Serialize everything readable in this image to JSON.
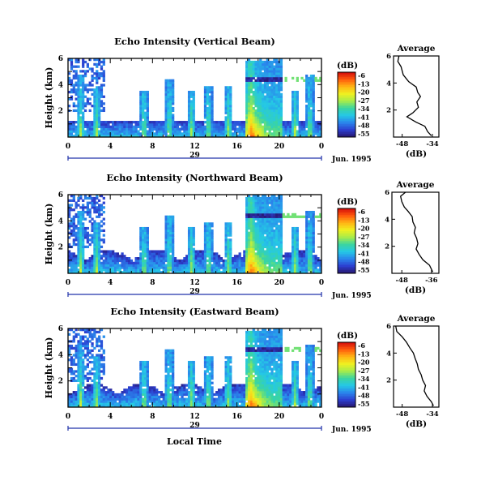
{
  "figure": {
    "ylabel": "Height (km)",
    "xlabel": "Local Time",
    "date_label": "Jun. 1995",
    "day_label": "29",
    "colorbar_unit": "(dB)",
    "colorbar_ticks": [
      "-6",
      "-13",
      "-20",
      "-27",
      "-34",
      "-41",
      "-48",
      "-55"
    ],
    "colormap": [
      "#28166e",
      "#2c3fd0",
      "#2a86ec",
      "#25c8e6",
      "#3bd5a0",
      "#a8ec4a",
      "#f0f020",
      "#ffb414",
      "#ff5a0c",
      "#d20a0a"
    ]
  },
  "chart_data": [
    {
      "type": "heatmap",
      "title": "Echo Intensity (Vertical Beam)",
      "x_ticks": [
        "0",
        "4",
        "8",
        "12",
        "16",
        "20",
        "0"
      ],
      "y_ticks": [
        "6",
        "4",
        "2"
      ],
      "xlim": [
        0,
        24
      ],
      "ylim": [
        0,
        6
      ],
      "convection_window_hours": [
        16.8,
        20.3
      ],
      "bright_band_height_km": 4.4
    },
    {
      "type": "line",
      "title": "Average",
      "xlabel": "(dB)",
      "x_ticks": [
        "-48",
        "-34"
      ],
      "y_ticks": [
        "6",
        "4",
        "2"
      ],
      "xlim": [
        -52,
        -31
      ],
      "ylim": [
        0,
        6
      ],
      "points": [
        [
          -49.5,
          6.0
        ],
        [
          -50.0,
          5.6
        ],
        [
          -48.5,
          5.2
        ],
        [
          -47.5,
          4.6
        ],
        [
          -45.0,
          4.1
        ],
        [
          -41.5,
          3.7
        ],
        [
          -40.8,
          3.3
        ],
        [
          -39.5,
          3.0
        ],
        [
          -41.2,
          2.6
        ],
        [
          -40.5,
          2.2
        ],
        [
          -43.0,
          1.8
        ],
        [
          -45.8,
          1.5
        ],
        [
          -41.5,
          1.1
        ],
        [
          -37.5,
          0.8
        ],
        [
          -36.2,
          0.4
        ],
        [
          -34.5,
          0.1
        ]
      ]
    },
    {
      "type": "heatmap",
      "title": "Echo Intensity (Northward Beam)",
      "x_ticks": [
        "0",
        "4",
        "8",
        "12",
        "16",
        "20",
        "0"
      ],
      "y_ticks": [
        "6",
        "4",
        "2"
      ],
      "xlim": [
        0,
        24
      ],
      "ylim": [
        0,
        6
      ],
      "convection_window_hours": [
        16.8,
        20.3
      ],
      "bright_band_height_km": 4.4
    },
    {
      "type": "line",
      "title": "Average",
      "xlabel": "(dB)",
      "x_ticks": [
        "-48",
        "-36"
      ],
      "y_ticks": [
        "6",
        "4",
        "2"
      ],
      "xlim": [
        -52,
        -33
      ],
      "ylim": [
        0,
        6
      ],
      "points": [
        [
          -46.5,
          6.0
        ],
        [
          -48.5,
          5.7
        ],
        [
          -48.0,
          5.3
        ],
        [
          -47.0,
          4.9
        ],
        [
          -45.5,
          4.6
        ],
        [
          -43.8,
          4.2
        ],
        [
          -43.5,
          3.8
        ],
        [
          -42.5,
          3.4
        ],
        [
          -43.0,
          3.0
        ],
        [
          -42.0,
          2.6
        ],
        [
          -41.5,
          2.2
        ],
        [
          -42.2,
          1.8
        ],
        [
          -41.0,
          1.4
        ],
        [
          -39.5,
          1.0
        ],
        [
          -36.8,
          0.6
        ],
        [
          -35.5,
          0.1
        ]
      ]
    },
    {
      "type": "heatmap",
      "title": "Echo Intensity (Eastward Beam)",
      "x_ticks": [
        "0",
        "4",
        "8",
        "12",
        "16",
        "20",
        "0"
      ],
      "y_ticks": [
        "6",
        "4",
        "2"
      ],
      "xlim": [
        0,
        24
      ],
      "ylim": [
        0,
        6
      ],
      "convection_window_hours": [
        16.8,
        20.3
      ],
      "bright_band_height_km": 4.4
    },
    {
      "type": "line",
      "title": "Average",
      "xlabel": "(dB)",
      "x_ticks": [
        "-48",
        "-34"
      ],
      "y_ticks": [
        "6",
        "4",
        "2"
      ],
      "xlim": [
        -52,
        -31
      ],
      "ylim": [
        0,
        6
      ],
      "points": [
        [
          -51.0,
          6.0
        ],
        [
          -50.5,
          5.6
        ],
        [
          -48.0,
          5.2
        ],
        [
          -46.0,
          4.8
        ],
        [
          -44.5,
          4.4
        ],
        [
          -42.8,
          4.0
        ],
        [
          -42.0,
          3.6
        ],
        [
          -41.0,
          3.2
        ],
        [
          -40.5,
          2.8
        ],
        [
          -39.2,
          2.4
        ],
        [
          -38.5,
          2.0
        ],
        [
          -37.2,
          1.6
        ],
        [
          -37.8,
          1.2
        ],
        [
          -36.5,
          0.8
        ],
        [
          -34.5,
          0.4
        ],
        [
          -33.5,
          0.1
        ]
      ]
    }
  ]
}
